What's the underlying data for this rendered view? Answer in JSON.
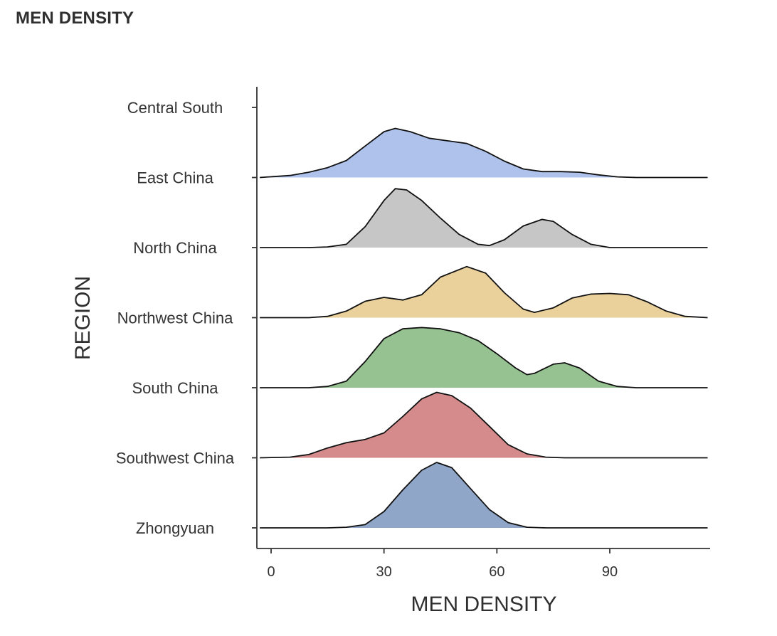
{
  "chart_data": {
    "type": "ridgeline",
    "title": "MEN DENSITY",
    "xlabel": "MEN DENSITY",
    "ylabel": "REGION",
    "xlim": [
      -3,
      116
    ],
    "x_ticks": [
      0,
      30,
      60,
      90
    ],
    "grid": false,
    "legend": "none",
    "categories": [
      "Central South",
      "East China",
      "North China",
      "Northwest China",
      "South China",
      "Southwest China",
      "Zhongyuan"
    ],
    "series": [
      {
        "name": "Central South",
        "color": "#ffffff",
        "points": []
      },
      {
        "name": "East China",
        "color": "#aec2ec",
        "points": [
          [
            -3,
            0
          ],
          [
            5,
            0.03
          ],
          [
            10,
            0.08
          ],
          [
            15,
            0.15
          ],
          [
            20,
            0.26
          ],
          [
            25,
            0.48
          ],
          [
            30,
            0.7
          ],
          [
            33,
            0.75
          ],
          [
            37,
            0.7
          ],
          [
            42,
            0.6
          ],
          [
            47,
            0.56
          ],
          [
            52,
            0.52
          ],
          [
            57,
            0.4
          ],
          [
            62,
            0.25
          ],
          [
            67,
            0.13
          ],
          [
            72,
            0.09
          ],
          [
            77,
            0.09
          ],
          [
            82,
            0.08
          ],
          [
            87,
            0.04
          ],
          [
            92,
            0.01
          ],
          [
            97,
            0
          ],
          [
            116,
            0
          ]
        ]
      },
      {
        "name": "North China",
        "color": "#c6c6c6",
        "points": [
          [
            -3,
            0
          ],
          [
            10,
            0
          ],
          [
            15,
            0.01
          ],
          [
            20,
            0.05
          ],
          [
            25,
            0.32
          ],
          [
            30,
            0.72
          ],
          [
            33,
            0.9
          ],
          [
            36,
            0.88
          ],
          [
            40,
            0.72
          ],
          [
            45,
            0.45
          ],
          [
            50,
            0.2
          ],
          [
            55,
            0.05
          ],
          [
            58,
            0.03
          ],
          [
            62,
            0.12
          ],
          [
            67,
            0.33
          ],
          [
            72,
            0.43
          ],
          [
            75,
            0.4
          ],
          [
            80,
            0.2
          ],
          [
            85,
            0.05
          ],
          [
            90,
            0
          ],
          [
            116,
            0
          ]
        ]
      },
      {
        "name": "Northwest China",
        "color": "#ead09a",
        "points": [
          [
            -3,
            0
          ],
          [
            10,
            0
          ],
          [
            15,
            0.02
          ],
          [
            20,
            0.1
          ],
          [
            25,
            0.25
          ],
          [
            30,
            0.31
          ],
          [
            35,
            0.27
          ],
          [
            40,
            0.35
          ],
          [
            45,
            0.62
          ],
          [
            52,
            0.78
          ],
          [
            57,
            0.68
          ],
          [
            62,
            0.38
          ],
          [
            67,
            0.13
          ],
          [
            70,
            0.08
          ],
          [
            75,
            0.15
          ],
          [
            80,
            0.3
          ],
          [
            85,
            0.36
          ],
          [
            90,
            0.37
          ],
          [
            95,
            0.35
          ],
          [
            100,
            0.24
          ],
          [
            105,
            0.1
          ],
          [
            110,
            0.02
          ],
          [
            116,
            0
          ]
        ]
      },
      {
        "name": "South China",
        "color": "#95c290",
        "points": [
          [
            -3,
            0
          ],
          [
            10,
            0
          ],
          [
            15,
            0.02
          ],
          [
            20,
            0.1
          ],
          [
            25,
            0.4
          ],
          [
            30,
            0.75
          ],
          [
            35,
            0.9
          ],
          [
            40,
            0.92
          ],
          [
            45,
            0.9
          ],
          [
            50,
            0.84
          ],
          [
            55,
            0.72
          ],
          [
            60,
            0.52
          ],
          [
            65,
            0.3
          ],
          [
            68,
            0.2
          ],
          [
            70,
            0.22
          ],
          [
            75,
            0.36
          ],
          [
            78,
            0.38
          ],
          [
            82,
            0.3
          ],
          [
            87,
            0.1
          ],
          [
            92,
            0.02
          ],
          [
            97,
            0
          ],
          [
            116,
            0
          ]
        ]
      },
      {
        "name": "Southwest China",
        "color": "#d58b8b",
        "points": [
          [
            -3,
            0
          ],
          [
            5,
            0.01
          ],
          [
            10,
            0.05
          ],
          [
            15,
            0.15
          ],
          [
            20,
            0.23
          ],
          [
            25,
            0.28
          ],
          [
            30,
            0.38
          ],
          [
            35,
            0.63
          ],
          [
            40,
            0.9
          ],
          [
            44,
            1.0
          ],
          [
            48,
            0.95
          ],
          [
            53,
            0.76
          ],
          [
            58,
            0.48
          ],
          [
            63,
            0.2
          ],
          [
            68,
            0.06
          ],
          [
            73,
            0.01
          ],
          [
            78,
            0
          ],
          [
            116,
            0
          ]
        ]
      },
      {
        "name": "Zhongyuan",
        "color": "#90a6c8",
        "points": [
          [
            -3,
            0
          ],
          [
            15,
            0
          ],
          [
            20,
            0.01
          ],
          [
            25,
            0.05
          ],
          [
            30,
            0.25
          ],
          [
            35,
            0.58
          ],
          [
            40,
            0.88
          ],
          [
            44,
            1.0
          ],
          [
            48,
            0.92
          ],
          [
            53,
            0.6
          ],
          [
            58,
            0.28
          ],
          [
            63,
            0.08
          ],
          [
            68,
            0.01
          ],
          [
            73,
            0
          ],
          [
            116,
            0
          ]
        ]
      }
    ]
  }
}
